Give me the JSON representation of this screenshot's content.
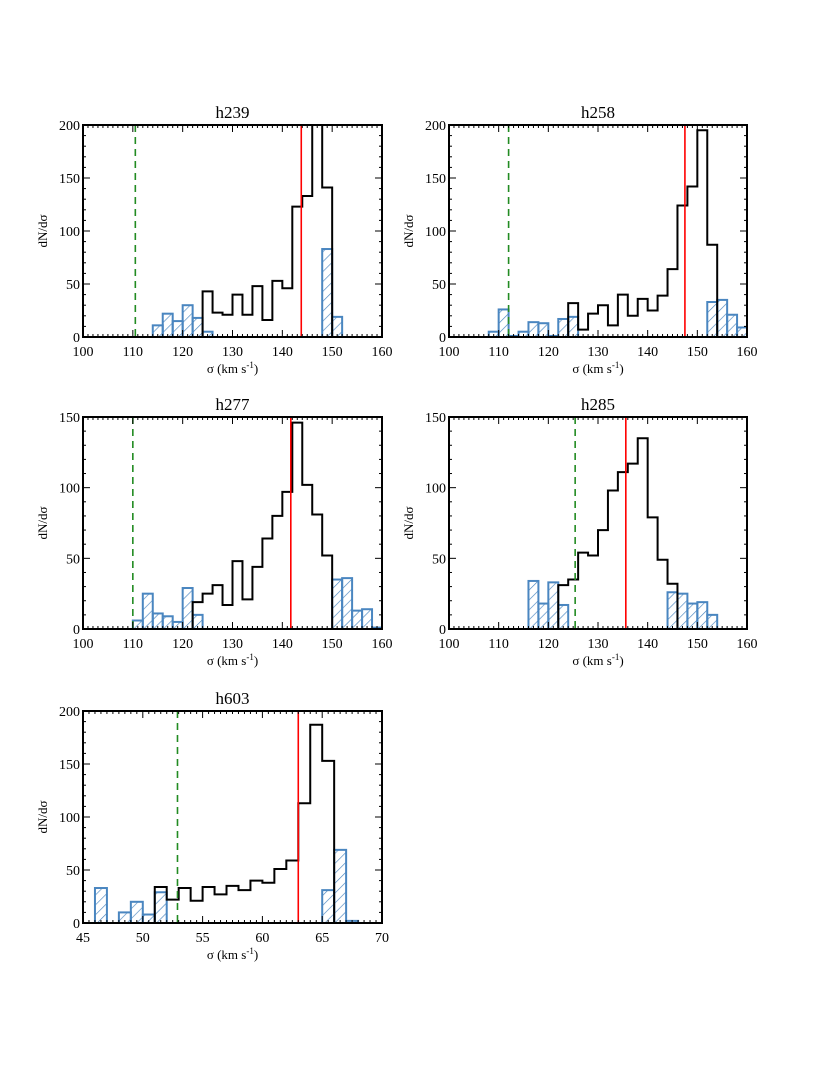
{
  "colors": {
    "all": "#000000",
    "outliers": "#4a86c0",
    "median_line": "#ff0000",
    "cut_line": "#228b22"
  },
  "chart_data": [
    {
      "type": "bar",
      "title": "h239",
      "xlabel": "σ (km s",
      "xlabel_sup": "-1",
      "xlabel_end": ")",
      "ylabel": "dN/dσ",
      "xlim": [
        100,
        160
      ],
      "ylim": [
        0,
        200
      ],
      "xticks": [
        100,
        110,
        120,
        130,
        140,
        150,
        160
      ],
      "yticks": [
        0,
        50,
        100,
        150,
        200
      ],
      "bin_width": 2,
      "grid": false,
      "series": [
        {
          "style": "step-black",
          "x_start": 124,
          "values": [
            43,
            23,
            21,
            40,
            21,
            48,
            16,
            53,
            46,
            123,
            133,
            200,
            141
          ]
        },
        {
          "style": "hatched-blue",
          "x_start": 114,
          "values": [
            11,
            22,
            15,
            30,
            18,
            5,
            0,
            0,
            0,
            0,
            0,
            0,
            0,
            0,
            0,
            0,
            0,
            83,
            19
          ]
        }
      ],
      "vlines": [
        {
          "style": "dashed-green",
          "x": 110.5
        },
        {
          "style": "solid-red",
          "x": 143.8
        }
      ]
    },
    {
      "type": "bar",
      "title": "h258",
      "xlabel": "σ (km s",
      "xlabel_sup": "-1",
      "xlabel_end": ")",
      "ylabel": "dN/dσ",
      "xlim": [
        100,
        160
      ],
      "ylim": [
        0,
        200
      ],
      "xticks": [
        100,
        110,
        120,
        130,
        140,
        150,
        160
      ],
      "yticks": [
        0,
        50,
        100,
        150,
        200
      ],
      "bin_width": 2,
      "grid": false,
      "series": [
        {
          "style": "step-black",
          "x_start": 124,
          "values": [
            32,
            7,
            22,
            30,
            11,
            40,
            20,
            36,
            25,
            39,
            64,
            124,
            142,
            195,
            87
          ]
        },
        {
          "style": "hatched-blue",
          "x_start": 108,
          "values": [
            5,
            26,
            1,
            5,
            14,
            13,
            1,
            17,
            19,
            0,
            0,
            0,
            0,
            0,
            0,
            0,
            0,
            0,
            0,
            0,
            0,
            0,
            33,
            35,
            21,
            9
          ]
        }
      ],
      "vlines": [
        {
          "style": "dashed-green",
          "x": 112
        },
        {
          "style": "solid-red",
          "x": 147.5
        }
      ]
    },
    {
      "type": "bar",
      "title": "h277",
      "xlabel": "σ (km s",
      "xlabel_sup": "-1",
      "xlabel_end": ")",
      "ylabel": "dN/dσ",
      "xlim": [
        100,
        160
      ],
      "ylim": [
        0,
        150
      ],
      "xticks": [
        100,
        110,
        120,
        130,
        140,
        150,
        160
      ],
      "yticks": [
        0,
        50,
        100,
        150
      ],
      "bin_width": 2,
      "grid": false,
      "series": [
        {
          "style": "step-black",
          "x_start": 122,
          "values": [
            19,
            25,
            31,
            17,
            48,
            21,
            44,
            64,
            80,
            97,
            146,
            102,
            81,
            52
          ]
        },
        {
          "style": "hatched-blue",
          "x_start": 110,
          "values": [
            6,
            25,
            11,
            9,
            5,
            29,
            10,
            0,
            0,
            0,
            0,
            0,
            0,
            0,
            0,
            0,
            0,
            0,
            0,
            0,
            35,
            36,
            13,
            14,
            1
          ]
        }
      ],
      "vlines": [
        {
          "style": "dashed-green",
          "x": 110
        },
        {
          "style": "solid-red",
          "x": 141.7
        }
      ]
    },
    {
      "type": "bar",
      "title": "h285",
      "xlabel": "σ (km s",
      "xlabel_sup": "-1",
      "xlabel_end": ")",
      "ylabel": "dN/dσ",
      "xlim": [
        100,
        160
      ],
      "ylim": [
        0,
        150
      ],
      "xticks": [
        100,
        110,
        120,
        130,
        140,
        150,
        160
      ],
      "yticks": [
        0,
        50,
        100,
        150
      ],
      "bin_width": 2,
      "grid": false,
      "series": [
        {
          "style": "step-black",
          "x_start": 122,
          "values": [
            31,
            35,
            54,
            52,
            70,
            98,
            111,
            117,
            135,
            79,
            49,
            32
          ]
        },
        {
          "style": "hatched-blue",
          "x_start": 116,
          "values": [
            34,
            18,
            33,
            17,
            0,
            0,
            0,
            0,
            0,
            0,
            0,
            0,
            0,
            0,
            26,
            25,
            18,
            19,
            10
          ]
        }
      ],
      "vlines": [
        {
          "style": "dashed-green",
          "x": 125.4
        },
        {
          "style": "solid-red",
          "x": 135.6
        }
      ]
    },
    {
      "type": "bar",
      "title": "h603",
      "xlabel": "σ (km s",
      "xlabel_sup": "-1",
      "xlabel_end": ")",
      "ylabel": "dN/dσ",
      "xlim": [
        45,
        70
      ],
      "ylim": [
        0,
        200
      ],
      "xticks": [
        45,
        50,
        55,
        60,
        65,
        70
      ],
      "yticks": [
        0,
        50,
        100,
        150,
        200
      ],
      "bin_width": 1,
      "grid": false,
      "series": [
        {
          "style": "step-black",
          "x_start": 51,
          "values": [
            34,
            22,
            33,
            21,
            34,
            27,
            35,
            31,
            40,
            38,
            51,
            59,
            113,
            187,
            153
          ]
        },
        {
          "style": "hatched-blue",
          "x_start": 46,
          "values": [
            33,
            0,
            10,
            20,
            8,
            29,
            0,
            0,
            0,
            0,
            0,
            0,
            0,
            0,
            0,
            0,
            0,
            0,
            0,
            31,
            69,
            2
          ]
        }
      ],
      "vlines": [
        {
          "style": "dashed-green",
          "x": 52.9
        },
        {
          "style": "solid-red",
          "x": 63
        }
      ]
    }
  ]
}
